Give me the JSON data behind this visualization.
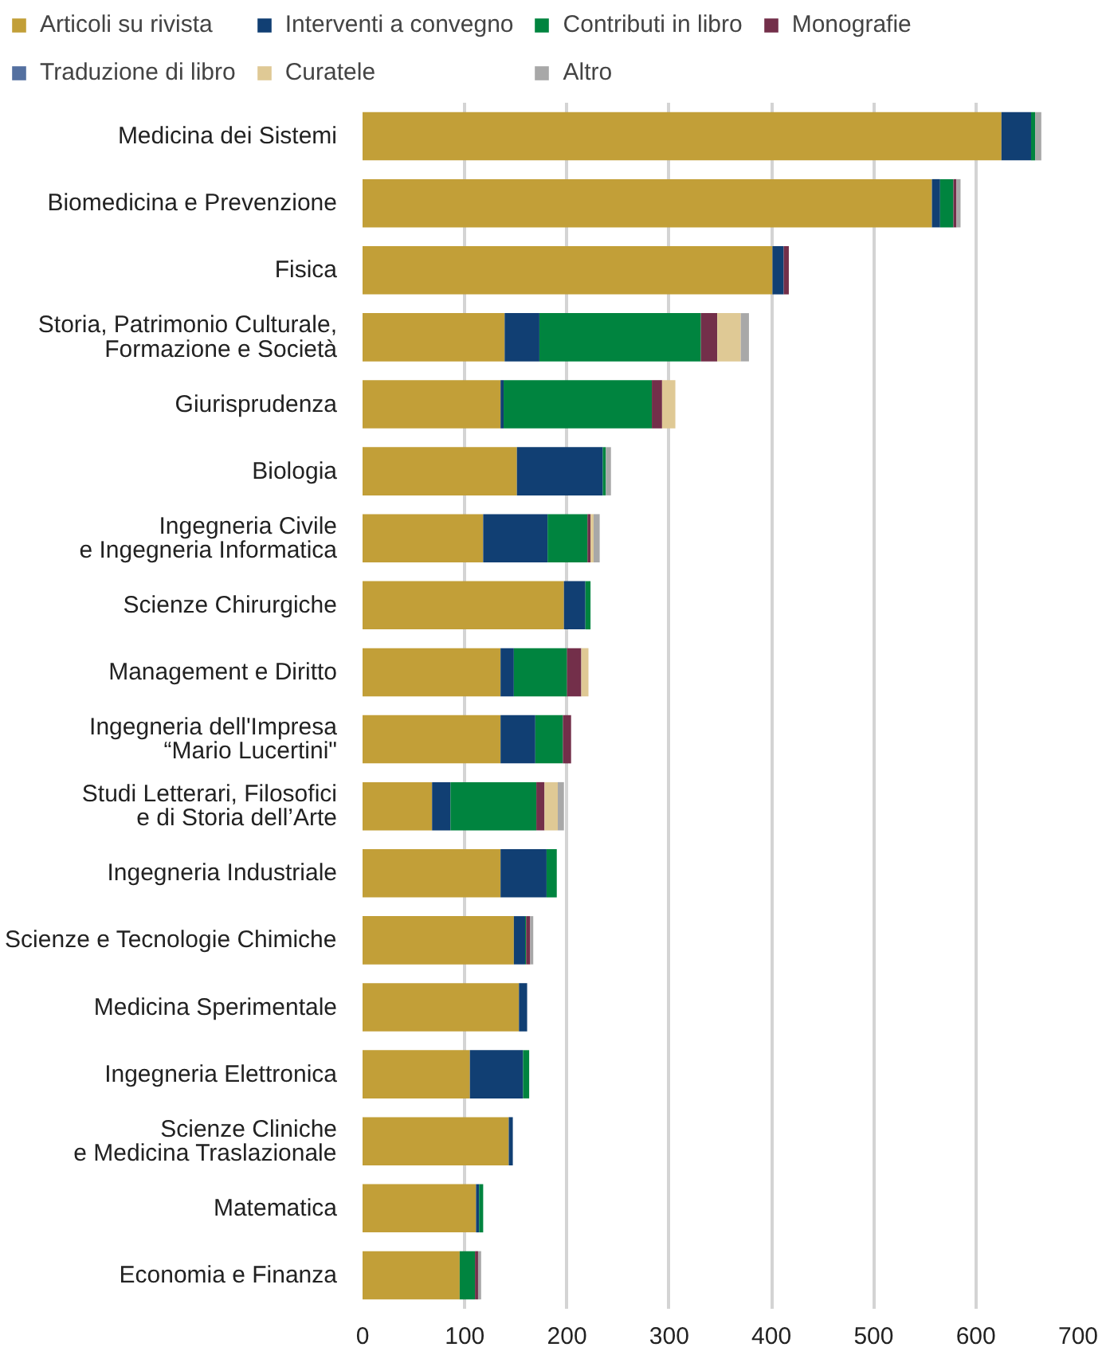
{
  "chart_data": {
    "type": "bar",
    "orientation": "horizontal",
    "stacked": true,
    "categories": [
      "Medicina dei Sistemi",
      "Biomedicina e Prevenzione",
      "Fisica",
      "Storia, Patrimonio Culturale,\nFormazione e Società",
      "Giurisprudenza",
      "Biologia",
      "Ingegneria Civile\ne Ingegneria Informatica",
      "Scienze Chirurgiche",
      "Management e Diritto",
      "Ingegneria dell'Impresa\n“Mario Lucertini\"",
      "Studi Letterari, Filosofici\ne di Storia dell’Arte",
      "Ingegneria Industriale",
      "Scienze e Tecnologie Chimiche",
      "Medicina Sperimentale",
      "Ingegneria Elettronica",
      "Scienze Cliniche\ne Medicina Traslazionale",
      "Matematica",
      "Economia e Finanza"
    ],
    "series": [
      {
        "name": "Articoli su rivista",
        "color": "#c29f38",
        "values": [
          625,
          557,
          401,
          139,
          135,
          151,
          118,
          197,
          135,
          135,
          68,
          135,
          148,
          153,
          105,
          143,
          111,
          95
        ]
      },
      {
        "name": "Interventi a convegno",
        "color": "#113f73",
        "values": [
          29,
          8,
          11,
          34,
          3,
          84,
          63,
          21,
          13,
          34,
          18,
          45,
          11,
          8,
          52,
          4,
          3,
          0
        ]
      },
      {
        "name": "Contributi in libro",
        "color": "#00843f",
        "values": [
          4,
          13,
          0,
          158,
          145,
          3,
          39,
          5,
          52,
          27,
          84,
          10,
          1,
          0,
          6,
          0,
          4,
          15
        ]
      },
      {
        "name": "Monografie",
        "color": "#732f4a",
        "values": [
          0,
          3,
          5,
          16,
          10,
          0,
          3,
          0,
          14,
          8,
          8,
          0,
          4,
          0,
          0,
          0,
          0,
          3
        ]
      },
      {
        "name": "Traduzione di libro",
        "color": "#5470a0",
        "values": [
          0,
          0,
          0,
          0,
          0,
          0,
          0,
          0,
          0,
          0,
          0,
          0,
          0,
          0,
          0,
          0,
          0,
          0
        ]
      },
      {
        "name": "Curatele",
        "color": "#dfc995",
        "values": [
          0,
          0,
          0,
          23,
          13,
          0,
          3,
          0,
          7,
          0,
          13,
          0,
          0,
          0,
          0,
          0,
          0,
          0
        ]
      },
      {
        "name": "Altro",
        "color": "#a8a8a8",
        "values": [
          6,
          4,
          0,
          8,
          0,
          5,
          6,
          0,
          0,
          0,
          6,
          0,
          3,
          0,
          0,
          0,
          0,
          3
        ]
      }
    ],
    "xlim": [
      0,
      700
    ],
    "xticks": [
      0,
      100,
      200,
      300,
      400,
      500,
      600,
      700
    ],
    "grid": "x",
    "legend": "top left"
  }
}
